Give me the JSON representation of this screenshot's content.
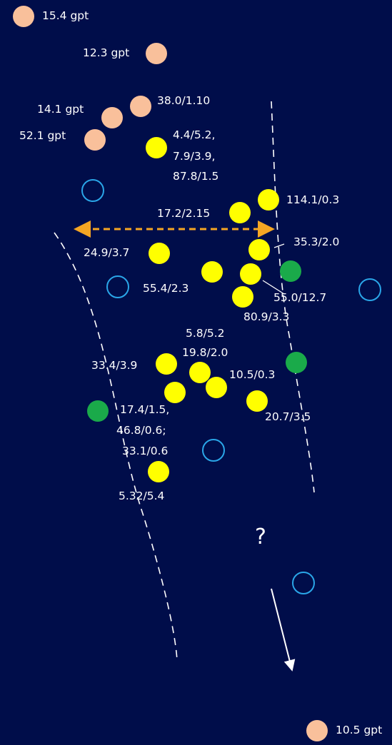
{
  "colors": {
    "background": "#000d4a",
    "orange_marker": "#f9c09b",
    "yellow_marker": "#ffff00",
    "green_marker": "#1aaa4a",
    "open_marker": "#2aa6e8",
    "arrow_dashed": "#f5a623",
    "lines": "#ffffff"
  },
  "labels": {
    "g1": "15.4 gpt",
    "g2": "12.3 gpt",
    "g3": "14.1 gpt",
    "g4": "52.1 gpt",
    "g5": "10.5 gpt",
    "s1": "38.0/1.10",
    "s2a": "4.4/5.2,",
    "s2b": "7.9/3.9,",
    "s2c": "87.8/1.5",
    "s3": "114.1/0.3",
    "s4": "17.2/2.15",
    "s5": "35.3/2.0",
    "s6": "24.9/3.7",
    "s7": "55.4/2.3",
    "s8": "55.0/12.7",
    "s9": "80.9/3.3",
    "s10": "5.8/5.2",
    "s11": "19.8/2.0",
    "s12": "33.4/3.9",
    "s13": "10.5/0.3",
    "s14": "20.7/3.5",
    "s15a": "17.4/1.5,",
    "s15b": "46.8/0.6;",
    "s15c": "33.1/0.6",
    "s16": "5.32/5.4",
    "question": "?"
  }
}
